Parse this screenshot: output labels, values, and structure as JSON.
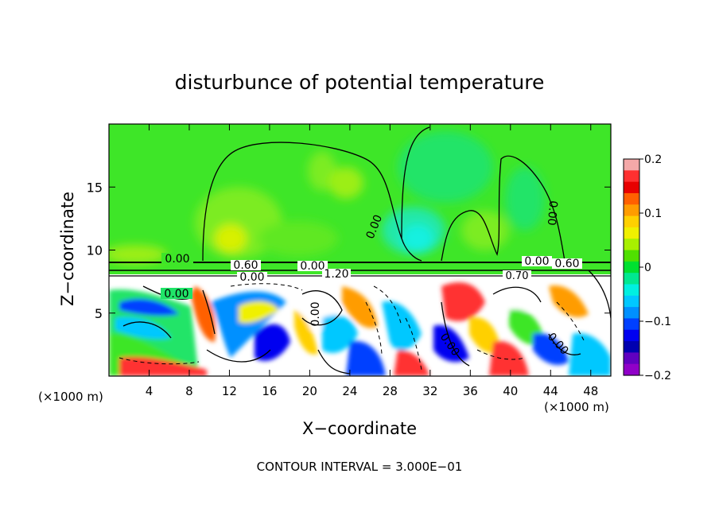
{
  "chart_data": {
    "type": "heatmap",
    "title": "disturbunce of potential temperature",
    "xlabel": "X−coordinate",
    "ylabel": "Z−coordinate",
    "xunit_left": "(×1000 m)",
    "xunit_right": "(×1000 m)",
    "footer": "CONTOUR INTERVAL = 3.000E−01",
    "xlim": [
      0,
      50
    ],
    "ylim": [
      0,
      20
    ],
    "xticks": [
      4,
      8,
      12,
      16,
      20,
      24,
      28,
      32,
      36,
      40,
      44,
      48
    ],
    "xtick_labels": [
      "4",
      "8",
      "12",
      "16",
      "20",
      "24",
      "28",
      "32",
      "36",
      "40",
      "44",
      "48"
    ],
    "yticks": [
      5,
      10,
      15
    ],
    "ytick_labels": [
      "5",
      "10",
      "15"
    ],
    "colorbar": {
      "min": -0.2,
      "max": 0.2,
      "ticks": [
        0.2,
        0.1,
        0,
        -0.1,
        -0.2
      ],
      "tick_labels": [
        "0.2",
        "0.1",
        "0",
        "−0.1",
        "−0.2"
      ],
      "colors": [
        "#f4a8a8",
        "#ff3030",
        "#e80000",
        "#ff6000",
        "#ff9c00",
        "#ffd000",
        "#f0f000",
        "#a8f000",
        "#50e000",
        "#00e030",
        "#00e890",
        "#00f0e0",
        "#00c8ff",
        "#0090ff",
        "#0040ff",
        "#0000f0",
        "#0000b0",
        "#6000c0",
        "#9000c8"
      ]
    },
    "contour_labels": [
      {
        "text": "0.00",
        "x": 5.8,
        "y": 9.2
      },
      {
        "text": "0.00",
        "x": 5.4,
        "y": 6.4
      },
      {
        "text": "0.60",
        "x": 13.5,
        "y": 8.7
      },
      {
        "text": "0.00",
        "x": 14.2,
        "y": 7.8
      },
      {
        "text": "0.00",
        "x": 20.0,
        "y": 8.6
      },
      {
        "text": "1.20",
        "x": 22.5,
        "y": 8.0
      },
      {
        "text": "0.00",
        "x": 26.5,
        "y": 12.6
      },
      {
        "text": "0.00",
        "x": 44.2,
        "y": 13.0
      },
      {
        "text": "0.00",
        "x": 44.0,
        "y": 9.1
      },
      {
        "text": "0.60",
        "x": 46.5,
        "y": 8.8
      },
      {
        "text": "0.70",
        "x": 41.5,
        "y": 8.0
      },
      {
        "text": "0.00",
        "x": 20.6,
        "y": 4.8
      },
      {
        "text": "0.00",
        "x": 33.5,
        "y": 2.2
      },
      {
        "text": "0.00",
        "x": 45.0,
        "y": 2.3
      }
    ]
  }
}
